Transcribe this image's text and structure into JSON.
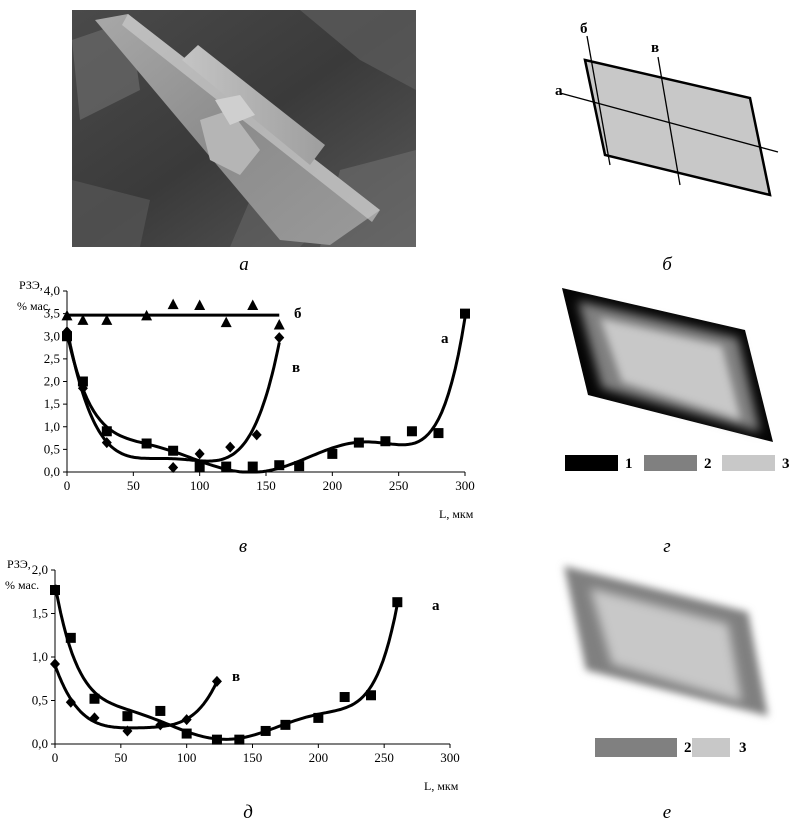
{
  "panel_labels": {
    "a": "а",
    "b": "б",
    "c": "в",
    "d": "г",
    "e": "д",
    "f": "е"
  },
  "sem_image": {
    "description": "SEM micrograph of a platy crystal"
  },
  "schematic": {
    "line_a": "а",
    "line_b": "б",
    "line_v": "в",
    "fill_color": "#c8c8c8"
  },
  "zoning_g": {
    "legend": [
      "1",
      "2",
      "3"
    ],
    "colors": [
      "#000000",
      "#808080",
      "#c8c8c8"
    ]
  },
  "zoning_e": {
    "legend": [
      "2",
      "3"
    ],
    "colors": [
      "#808080",
      "#c8c8c8"
    ]
  },
  "chart_data": [
    {
      "type": "scatter",
      "ylabel_1": "РЗЭ,",
      "ylabel_2": "% мас.",
      "xlabel": "L, мкм",
      "xlim": [
        0,
        300
      ],
      "ylim": [
        0,
        4.0
      ],
      "xticks": [
        "0",
        "50",
        "100",
        "150",
        "200",
        "250",
        "300"
      ],
      "yticks": [
        "0,0",
        "0,5",
        "1,0",
        "1,5",
        "2,0",
        "2,5",
        "3,0",
        "3,5",
        "4,0"
      ],
      "series": [
        {
          "name": "а",
          "marker": "square",
          "x": [
            0,
            12,
            30,
            60,
            80,
            100,
            120,
            140,
            160,
            175,
            200,
            220,
            240,
            260,
            280,
            300
          ],
          "y": [
            3.0,
            2.0,
            0.9,
            0.63,
            0.47,
            0.12,
            0.12,
            0.12,
            0.15,
            0.13,
            0.4,
            0.65,
            0.68,
            0.9,
            0.86,
            3.5
          ]
        },
        {
          "name": "б",
          "marker": "triangle",
          "x": [
            0,
            12,
            30,
            60,
            80,
            100,
            120,
            140,
            160
          ],
          "y": [
            3.45,
            3.35,
            3.35,
            3.45,
            3.7,
            3.68,
            3.3,
            3.68,
            3.25
          ]
        },
        {
          "name": "в",
          "marker": "diamond",
          "x": [
            0,
            12,
            30,
            80,
            100,
            123,
            143,
            160
          ],
          "y": [
            3.1,
            1.85,
            0.65,
            0.1,
            0.4,
            0.55,
            0.82,
            2.97
          ]
        }
      ]
    },
    {
      "type": "scatter",
      "ylabel_1": "РЗЭ,",
      "ylabel_2": "% мас.",
      "xlabel": "L, мкм",
      "xlim": [
        0,
        300
      ],
      "ylim": [
        0,
        2.0
      ],
      "xticks": [
        "0",
        "50",
        "100",
        "150",
        "200",
        "250",
        "300"
      ],
      "yticks": [
        "0,0",
        "0,5",
        "1,0",
        "1,5",
        "2,0"
      ],
      "series": [
        {
          "name": "а",
          "marker": "square",
          "x": [
            0,
            12,
            30,
            55,
            80,
            100,
            123,
            140,
            160,
            175,
            200,
            220,
            240,
            260
          ],
          "y": [
            1.77,
            1.22,
            0.52,
            0.32,
            0.38,
            0.12,
            0.05,
            0.05,
            0.15,
            0.22,
            0.3,
            0.54,
            0.56,
            1.63
          ]
        },
        {
          "name": "в",
          "marker": "diamond",
          "x": [
            0,
            12,
            30,
            55,
            80,
            100,
            123
          ],
          "y": [
            0.92,
            0.48,
            0.3,
            0.15,
            0.22,
            0.28,
            0.72
          ]
        }
      ]
    }
  ]
}
